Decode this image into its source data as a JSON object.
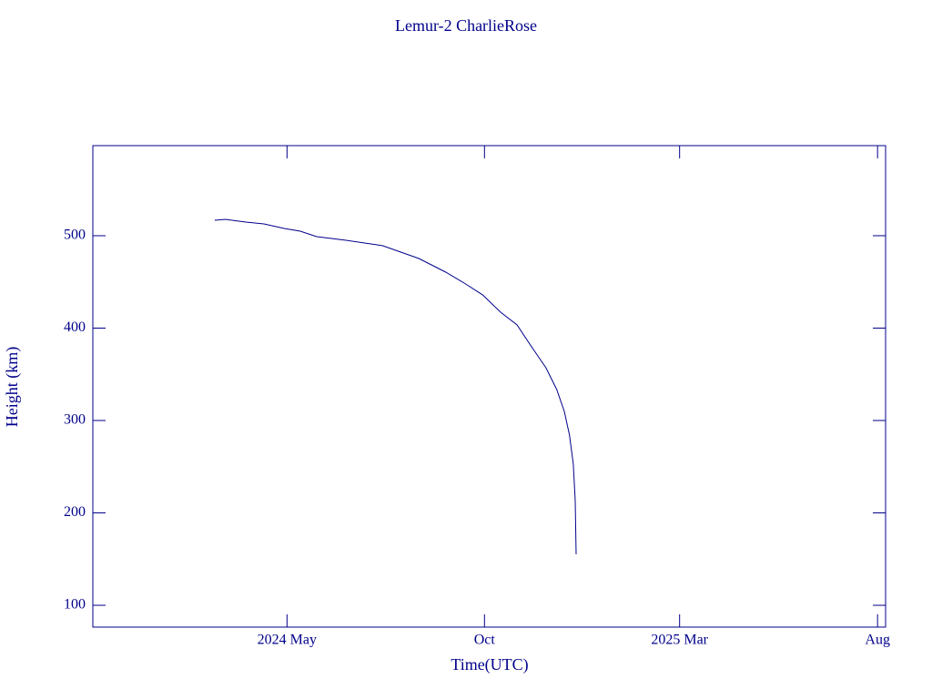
{
  "chart_data": {
    "type": "line",
    "title": "Lemur-2 CharlieRose",
    "x_label": "Time(UTC)",
    "y_label": "Height (km)",
    "color": "#00008b",
    "xlim": [
      2023.92,
      2025.598
    ],
    "ylim": [
      76.4,
      597.5
    ],
    "xticks": [
      {
        "value": 2024.331,
        "label": "2024 May"
      },
      {
        "value": 2024.749,
        "label": "Oct"
      },
      {
        "value": 2025.162,
        "label": "2025 Mar"
      },
      {
        "value": 2025.581,
        "label": "Aug"
      }
    ],
    "yticks": [
      100,
      200,
      300,
      400,
      500
    ],
    "x": [
      2024.178,
      2024.201,
      2024.244,
      2024.282,
      2024.325,
      2024.359,
      2024.394,
      2024.456,
      2024.533,
      2024.61,
      2024.667,
      2024.706,
      2024.745,
      2024.783,
      2024.818,
      2024.85,
      2024.879,
      2024.902,
      2024.918,
      2024.929,
      2024.937,
      2024.941,
      2024.943
    ],
    "series": [
      {
        "name": "Height",
        "color": "#00008b",
        "values": [
          516.7,
          517.7,
          514.8,
          512.8,
          507.9,
          504.9,
          499.0,
          495.1,
          489.2,
          475.4,
          460.6,
          448.8,
          436.0,
          417.2,
          403.4,
          378.8,
          357.1,
          333.5,
          309.9,
          284.2,
          252.7,
          213.3,
          155.2
        ]
      }
    ]
  }
}
